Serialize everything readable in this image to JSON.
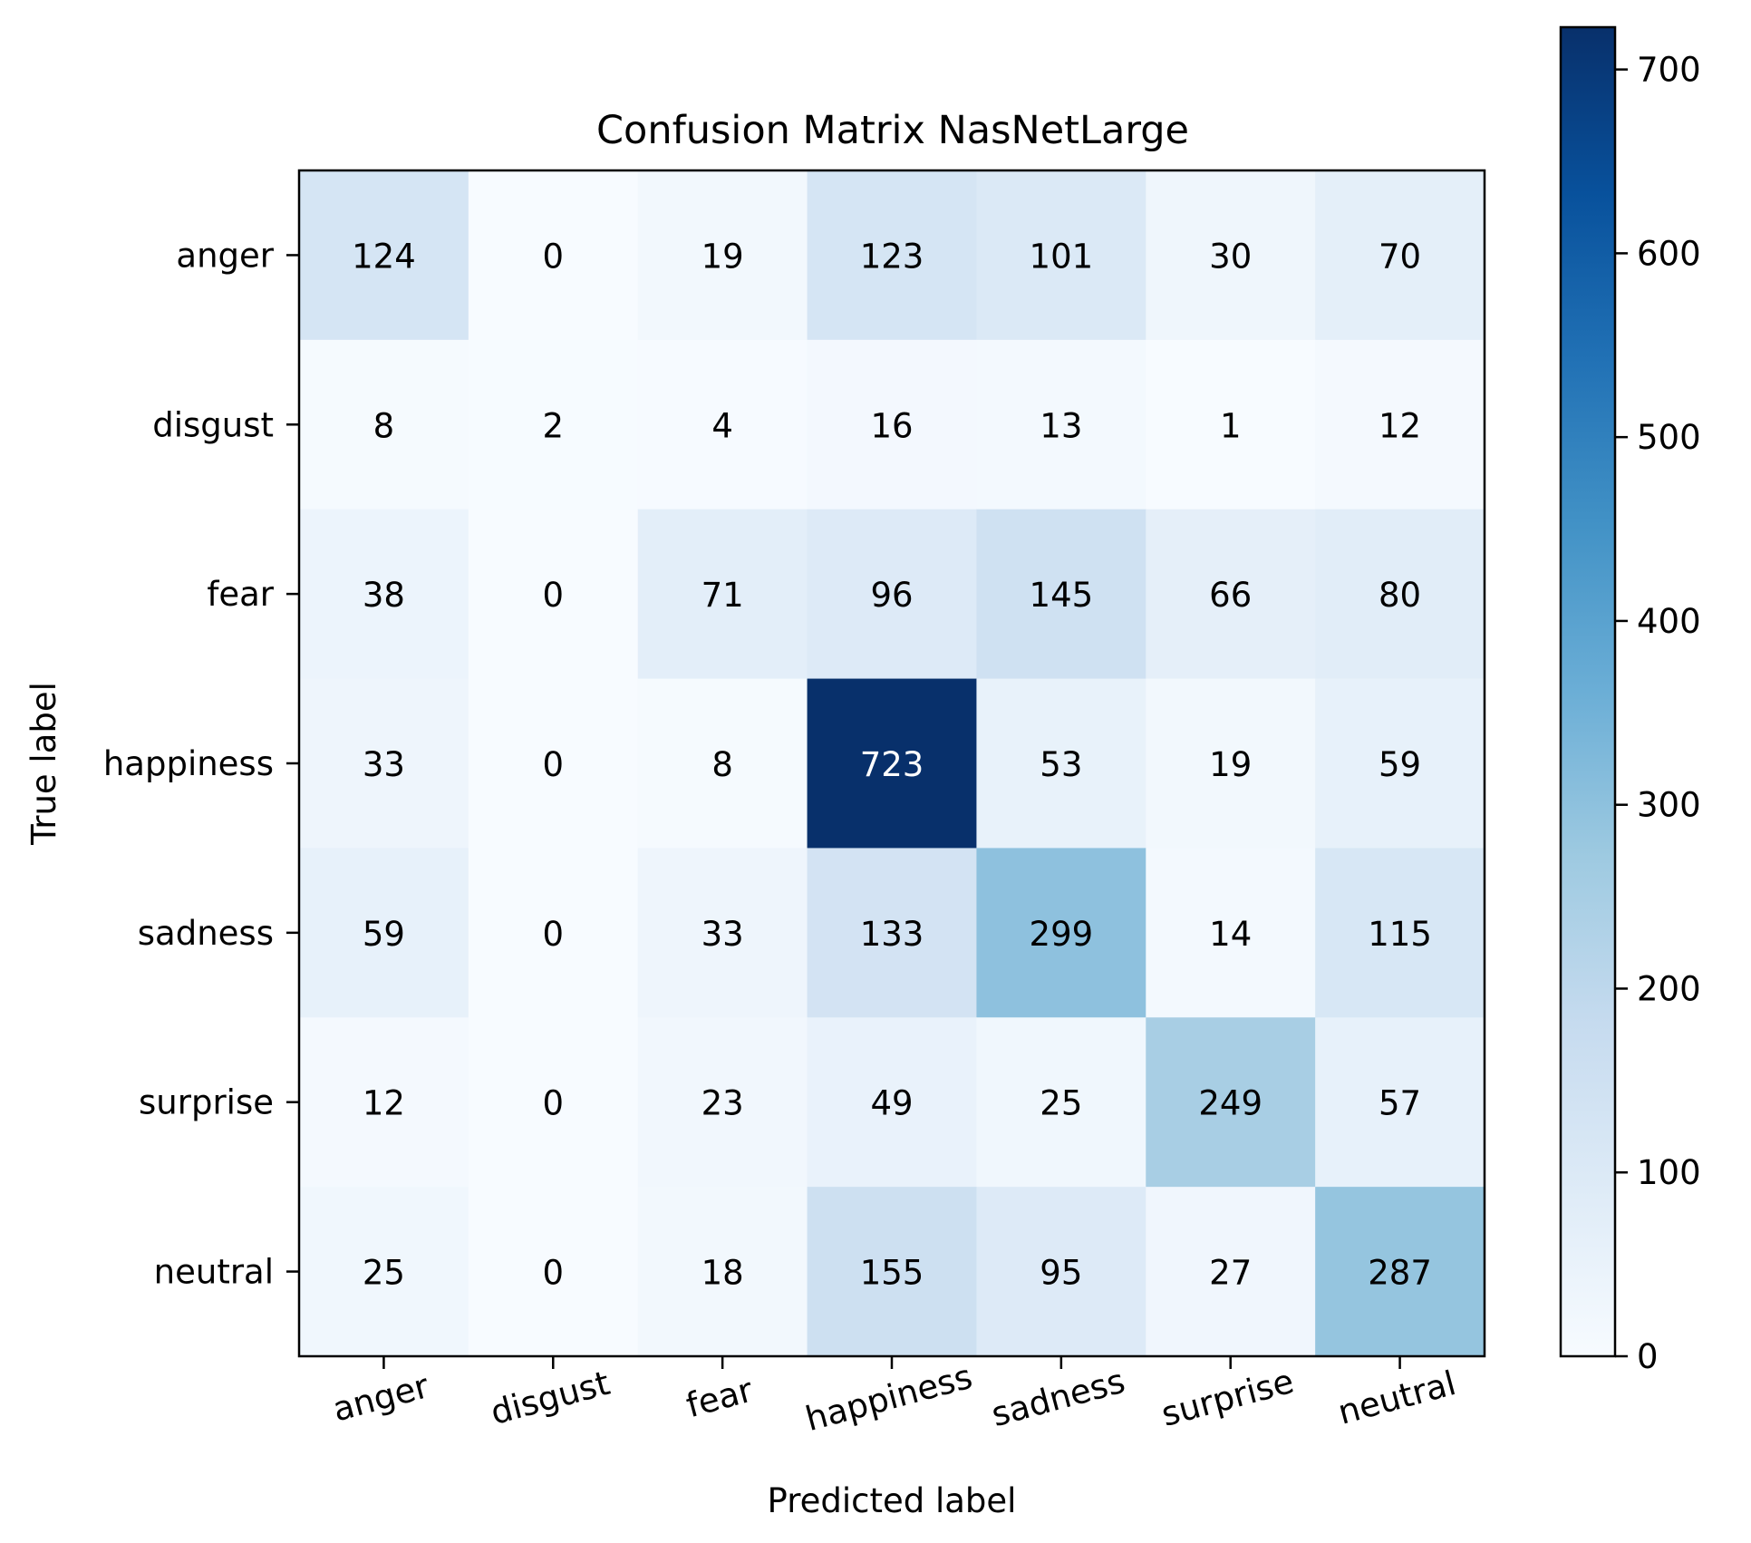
{
  "chart_data": {
    "type": "heatmap",
    "title": "Confusion Matrix NasNetLarge",
    "xlabel": "Predicted label",
    "ylabel": "True label",
    "x_categories": [
      "anger",
      "disgust",
      "fear",
      "happiness",
      "sadness",
      "surprise",
      "neutral"
    ],
    "y_categories": [
      "anger",
      "disgust",
      "fear",
      "happiness",
      "sadness",
      "surprise",
      "neutral"
    ],
    "values": [
      [
        124,
        0,
        19,
        123,
        101,
        30,
        70
      ],
      [
        8,
        2,
        4,
        16,
        13,
        1,
        12
      ],
      [
        38,
        0,
        71,
        96,
        145,
        66,
        80
      ],
      [
        33,
        0,
        8,
        723,
        53,
        19,
        59
      ],
      [
        59,
        0,
        33,
        133,
        299,
        14,
        115
      ],
      [
        12,
        0,
        23,
        49,
        25,
        249,
        57
      ],
      [
        25,
        0,
        18,
        155,
        95,
        27,
        287
      ]
    ],
    "colormap": "Blues",
    "colorbar": {
      "range": [
        0,
        723
      ],
      "ticks": [
        0,
        100,
        200,
        300,
        400,
        500,
        600,
        700
      ]
    },
    "x_tick_rotation_deg": 15,
    "grid": false
  }
}
